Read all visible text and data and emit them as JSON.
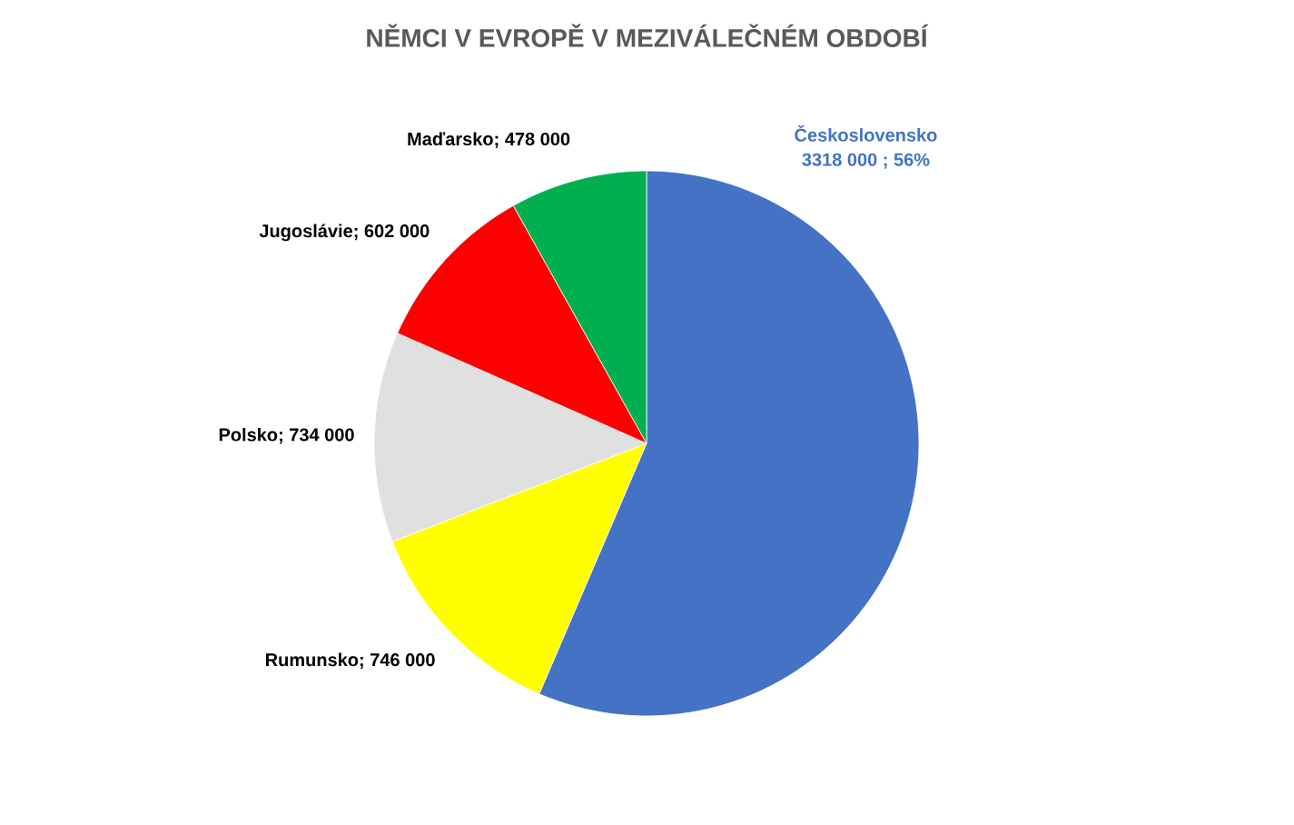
{
  "chart_data": {
    "type": "pie",
    "title": "NĚMCI V EVROPĚ V MEZIVÁLEČNÉM OBDOBÍ",
    "categories": [
      "Československo",
      "Rumunsko",
      "Polsko",
      "Jugoslávie",
      "Maďarsko"
    ],
    "values": [
      3318000,
      746000,
      734000,
      602000,
      478000
    ],
    "colors": [
      "#4472c4",
      "#ffff00",
      "#e0e0e0",
      "#ff0000",
      "#00b050"
    ],
    "value_labels": [
      "3318 000 ; 56%",
      "; 746 000",
      ";  734 000",
      ";  602 000",
      ";  478 000"
    ]
  }
}
